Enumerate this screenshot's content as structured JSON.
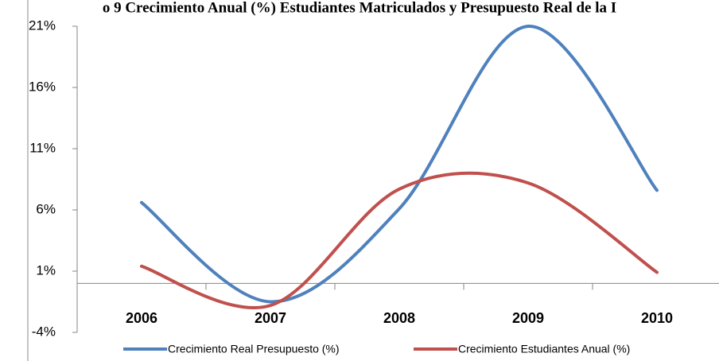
{
  "chart_data": {
    "type": "line",
    "title": "o 9 Crecimiento Anual (%) Estudiantes Matriculados y Presupuesto Real de la I",
    "categories": [
      "2006",
      "2007",
      "2008",
      "2009",
      "2010"
    ],
    "series": [
      {
        "name": "Crecimiento Real Presupuesto (%)",
        "color": "#4f81bd",
        "values": [
          6.6,
          -1.5,
          6.1,
          21.0,
          7.6
        ]
      },
      {
        "name": "Crecimiento Estudiantes Anual (%)",
        "color": "#c0504d",
        "values": [
          1.4,
          -1.8,
          7.7,
          8.2,
          0.9
        ]
      }
    ],
    "ylim": [
      -4,
      21
    ],
    "yticks": [
      {
        "value": -4,
        "label": "-4%"
      },
      {
        "value": 1,
        "label": "1%"
      },
      {
        "value": 6,
        "label": "6%"
      },
      {
        "value": 11,
        "label": "11%"
      },
      {
        "value": 16,
        "label": "16%"
      },
      {
        "value": 21,
        "label": "21%"
      }
    ],
    "smooth": true,
    "legend": "bottom"
  }
}
